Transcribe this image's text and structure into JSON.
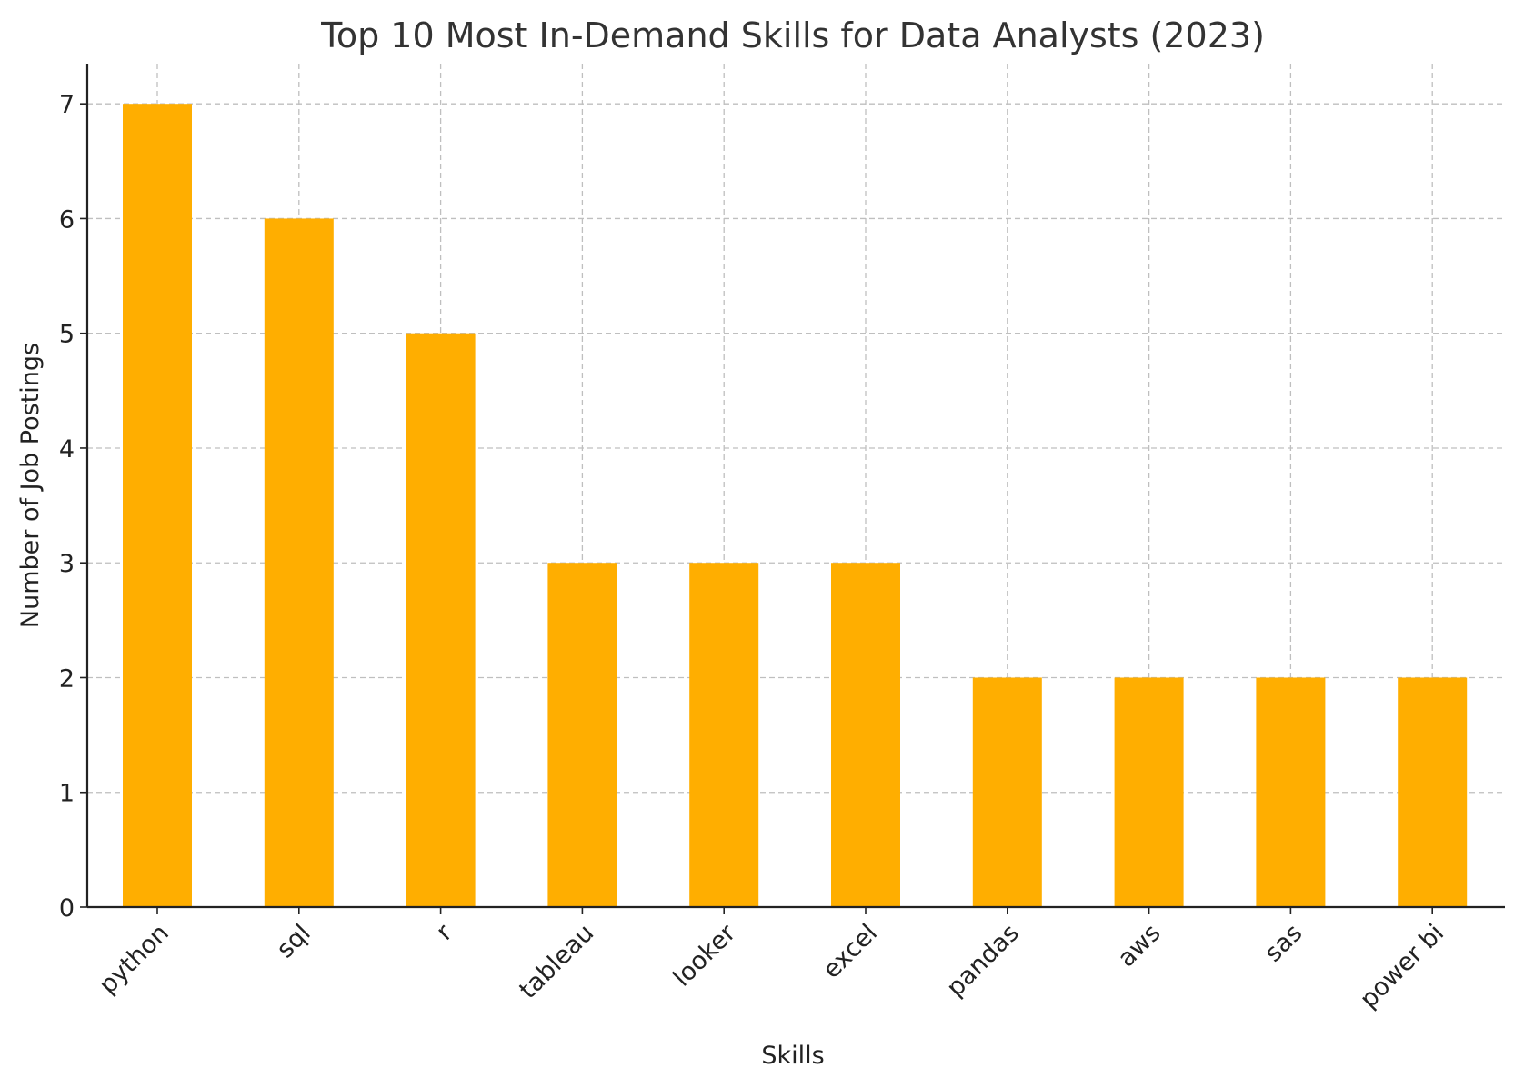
{
  "chart_data": {
    "type": "bar",
    "title": "Top 10 Most In-Demand Skills for Data Analysts (2023)",
    "xlabel": "Skills",
    "ylabel": "Number of Job Postings",
    "categories": [
      "python",
      "sql",
      "r",
      "tableau",
      "looker",
      "excel",
      "pandas",
      "aws",
      "sas",
      "power bi"
    ],
    "values": [
      7,
      6,
      5,
      3,
      3,
      3,
      2,
      2,
      2,
      2
    ],
    "yticks": [
      0,
      1,
      2,
      3,
      4,
      5,
      6,
      7
    ],
    "ylim": [
      0,
      7.35
    ],
    "grid": true,
    "bar_color": "#FFAE00"
  }
}
